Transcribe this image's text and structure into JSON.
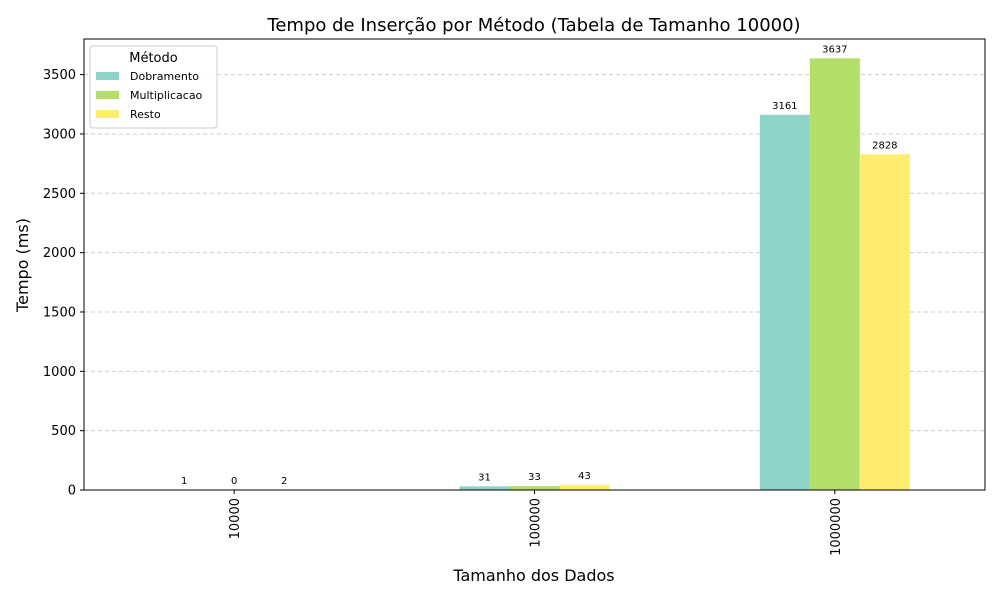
{
  "chart_data": {
    "type": "bar",
    "title": "Tempo de Inserção por Método (Tabela de Tamanho 10000)",
    "xlabel": "Tamanho dos Dados",
    "ylabel": "Tempo (ms)",
    "categories": [
      "10000",
      "100000",
      "1000000"
    ],
    "series": [
      {
        "name": "Dobramento",
        "values": [
          1,
          31,
          3161
        ],
        "color": "#8dd3c7"
      },
      {
        "name": "Multiplicacao",
        "values": [
          0,
          33,
          3637
        ],
        "color": "#b3de69"
      },
      {
        "name": "Resto",
        "values": [
          2,
          43,
          2828
        ],
        "color": "#ffed6f"
      }
    ],
    "ylim": [
      0,
      3800
    ],
    "yticks": [
      0,
      500,
      1000,
      1500,
      2000,
      2500,
      3000,
      3500
    ],
    "grid": "y-dashed",
    "legend": {
      "title": "Método",
      "placement": "top-left"
    }
  }
}
